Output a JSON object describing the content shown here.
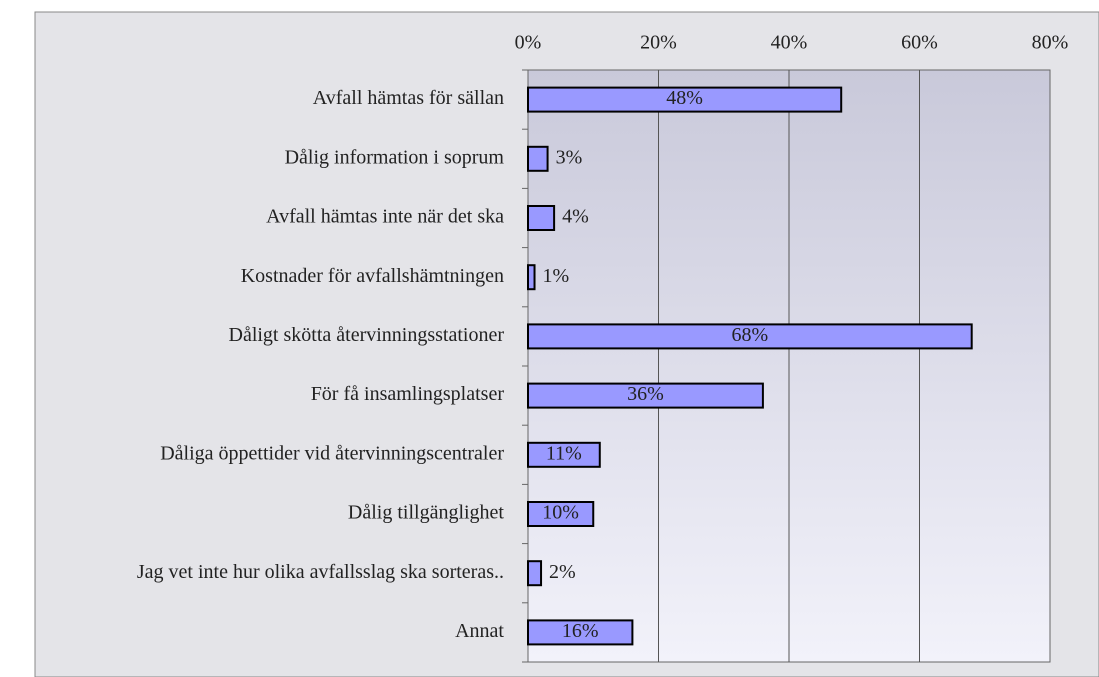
{
  "chart_data": {
    "type": "bar",
    "orientation": "horizontal",
    "categories": [
      "Avfall hämtas för sällan",
      "Dålig information i soprum",
      "Avfall hämtas inte när det ska",
      "Kostnader för avfallshämtningen",
      "Dåligt skötta återvinningsstationer",
      "För få insamlingsplatser",
      "Dåliga öppettider vid återvinningscentraler",
      "Dålig tillgänglighet",
      "Jag vet inte hur olika avfallsslag ska sorteras..",
      "Annat"
    ],
    "values": [
      48,
      3,
      4,
      1,
      68,
      36,
      11,
      10,
      2,
      16
    ],
    "value_labels": [
      "48%",
      "3%",
      "4%",
      "1%",
      "68%",
      "36%",
      "11%",
      "10%",
      "2%",
      "16%"
    ],
    "color": "#9999ff",
    "xlim": [
      0,
      80
    ],
    "xticks": [
      {
        "value": 0,
        "label": "0%"
      },
      {
        "value": 20,
        "label": "20%"
      },
      {
        "value": 40,
        "label": "40%"
      },
      {
        "value": 60,
        "label": "60%"
      },
      {
        "value": 80,
        "label": "80%"
      }
    ],
    "grid": true
  }
}
